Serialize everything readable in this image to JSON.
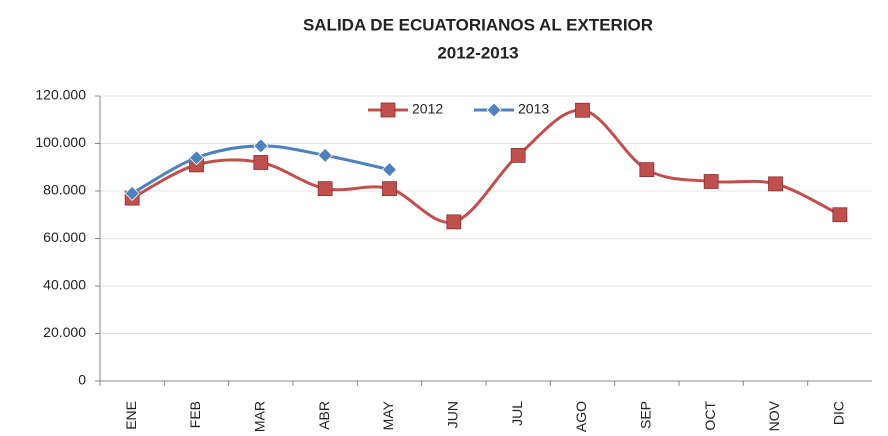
{
  "chart_data": {
    "type": "line",
    "title": "SALIDA DE ECUATORIANOS AL EXTERIOR",
    "subtitle": "2012-2013",
    "categories": [
      "ENE",
      "FEB",
      "MAR",
      "ABR",
      "MAY",
      "JUN",
      "JUL",
      "AGO",
      "SEP",
      "OCT",
      "NOV",
      "DIC"
    ],
    "series": [
      {
        "name": "2012",
        "color": "#c0504d",
        "marker": "square",
        "values": [
          77000,
          91000,
          92000,
          81000,
          81000,
          67000,
          95000,
          114000,
          89000,
          84000,
          83000,
          70000
        ]
      },
      {
        "name": "2013",
        "color": "#4f81bd",
        "marker": "diamond",
        "values": [
          79000,
          94000,
          99000,
          95000,
          89000,
          null,
          null,
          null,
          null,
          null,
          null,
          null
        ]
      }
    ],
    "ylim": [
      0,
      120000
    ],
    "yticks": [
      0,
      {
        "value": 20000,
        "label": "20.000"
      },
      {
        "value": 40000,
        "label": "40.000"
      },
      {
        "value": 60000,
        "label": "60.000"
      },
      {
        "value": 80000,
        "label": "80.000"
      },
      {
        "value": 100000,
        "label": "100.000"
      },
      {
        "value": 120000,
        "label": "120.000"
      }
    ],
    "grid": true,
    "smooth": true,
    "legend": "top"
  }
}
